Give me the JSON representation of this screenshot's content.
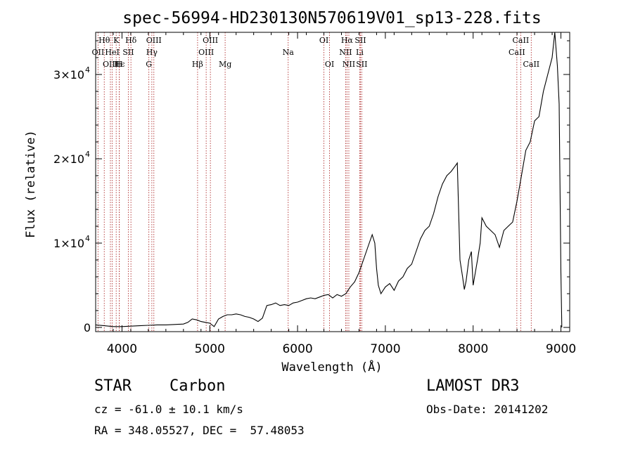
{
  "chart_data": {
    "type": "line",
    "title": "spec-56994-HD230130N570619V01_sp13-228.fits",
    "xlabel": "Wavelength (Å)",
    "ylabel": "Flux (relative)",
    "xlim": [
      3700,
      9100
    ],
    "ylim": [
      -500,
      35000
    ],
    "x_ticks": [
      {
        "value": 4000,
        "label": "4000"
      },
      {
        "value": 5000,
        "label": "5000"
      },
      {
        "value": 6000,
        "label": "6000"
      },
      {
        "value": 7000,
        "label": "7000"
      },
      {
        "value": 8000,
        "label": "8000"
      },
      {
        "value": 9000,
        "label": "9000"
      }
    ],
    "y_ticks": [
      {
        "value": 0,
        "mant": "0",
        "exp": ""
      },
      {
        "value": 10000,
        "mant": "1×10",
        "exp": "4"
      },
      {
        "value": 20000,
        "mant": "2×10",
        "exp": "4"
      },
      {
        "value": 30000,
        "mant": "3×10",
        "exp": "4"
      }
    ],
    "series": [
      {
        "name": "spectrum",
        "x": [
          3700,
          3800,
          3900,
          4000,
          4100,
          4200,
          4300,
          4400,
          4500,
          4600,
          4700,
          4750,
          4800,
          4850,
          4900,
          4950,
          5000,
          5050,
          5100,
          5150,
          5200,
          5250,
          5300,
          5350,
          5400,
          5450,
          5500,
          5550,
          5600,
          5650,
          5700,
          5750,
          5800,
          5850,
          5900,
          5950,
          6000,
          6050,
          6100,
          6150,
          6200,
          6250,
          6300,
          6350,
          6400,
          6450,
          6500,
          6550,
          6600,
          6650,
          6700,
          6750,
          6800,
          6850,
          6880,
          6900,
          6920,
          6950,
          7000,
          7050,
          7100,
          7150,
          7200,
          7250,
          7300,
          7350,
          7400,
          7450,
          7500,
          7550,
          7600,
          7650,
          7700,
          7750,
          7800,
          7820,
          7850,
          7880,
          7900,
          7920,
          7950,
          7980,
          8000,
          8050,
          8080,
          8100,
          8150,
          8200,
          8250,
          8300,
          8350,
          8400,
          8450,
          8500,
          8550,
          8600,
          8650,
          8700,
          8750,
          8800,
          8850,
          8900,
          8930,
          8960,
          8980,
          9000,
          9010
        ],
        "y": [
          300,
          200,
          100,
          100,
          150,
          200,
          250,
          300,
          300,
          350,
          400,
          600,
          1000,
          900,
          700,
          600,
          500,
          100,
          1000,
          1300,
          1500,
          1500,
          1600,
          1500,
          1300,
          1200,
          1000,
          700,
          1100,
          2600,
          2700,
          2900,
          2600,
          2700,
          2600,
          2900,
          3000,
          3200,
          3400,
          3500,
          3400,
          3600,
          3800,
          3900,
          3500,
          3900,
          3700,
          4000,
          4800,
          5400,
          6500,
          8000,
          9500,
          11000,
          10000,
          7000,
          5000,
          4000,
          4800,
          5200,
          4400,
          5500,
          6000,
          7000,
          7500,
          9000,
          10500,
          11500,
          12000,
          13500,
          15500,
          17000,
          18000,
          18500,
          19200,
          19500,
          8000,
          6000,
          4500,
          5500,
          8000,
          9000,
          5000,
          8000,
          10000,
          13000,
          12000,
          11500,
          11000,
          9500,
          11500,
          12000,
          12500,
          15000,
          18000,
          21000,
          22000,
          24500,
          25000,
          28000,
          30000,
          32000,
          36000,
          31000,
          26500,
          6500,
          0
        ]
      }
    ],
    "spectral_lines": [
      {
        "name": "Hθ",
        "wave": 3798,
        "row": 0
      },
      {
        "name": "OII",
        "wave": 3727,
        "row": 1
      },
      {
        "name": "OIII",
        "wave": 3868,
        "row": 2
      },
      {
        "name": "HeI",
        "wave": 3889,
        "row": 1
      },
      {
        "name": "K",
        "wave": 3934,
        "row": 0
      },
      {
        "name": "Hϵ",
        "wave": 3970,
        "row": 2
      },
      {
        "name": "SII",
        "wave": 4072,
        "row": 1
      },
      {
        "name": "H",
        "wave": 3969,
        "row": 2
      },
      {
        "name": "Hδ",
        "wave": 4102,
        "row": 0
      },
      {
        "name": "OIII",
        "wave": 4363,
        "row": 0
      },
      {
        "name": "Hγ",
        "wave": 4340,
        "row": 1
      },
      {
        "name": "G",
        "wave": 4306,
        "row": 2
      },
      {
        "name": "Hβ",
        "wave": 4861,
        "row": 2
      },
      {
        "name": "OIII",
        "wave": 5007,
        "row": 0
      },
      {
        "name": "OIII",
        "wave": 4959,
        "row": 1
      },
      {
        "name": "Mg",
        "wave": 5175,
        "row": 2
      },
      {
        "name": "Na",
        "wave": 5893,
        "row": 1
      },
      {
        "name": "OI",
        "wave": 6300,
        "row": 0
      },
      {
        "name": "OI",
        "wave": 6364,
        "row": 2
      },
      {
        "name": "Hα",
        "wave": 6563,
        "row": 0
      },
      {
        "name": "SII",
        "wave": 6716,
        "row": 0
      },
      {
        "name": "NII",
        "wave": 6548,
        "row": 1
      },
      {
        "name": "Li",
        "wave": 6708,
        "row": 1
      },
      {
        "name": "NII",
        "wave": 6584,
        "row": 2
      },
      {
        "name": "SII",
        "wave": 6731,
        "row": 2
      },
      {
        "name": "CaII",
        "wave": 8542,
        "row": 0
      },
      {
        "name": "CaII",
        "wave": 8498,
        "row": 1
      },
      {
        "name": "CaII",
        "wave": 8662,
        "row": 2
      }
    ],
    "line_color": "#000000",
    "marker_color": "#b03030"
  },
  "info": {
    "object_class": "STAR",
    "subclass": "Carbon",
    "survey": "LAMOST DR3",
    "redshift": "cz = -61.0 ± 10.1 km/s",
    "obs_date": "Obs-Date: 20141202",
    "coords": "RA = 348.05527, DEC =  57.48053"
  }
}
